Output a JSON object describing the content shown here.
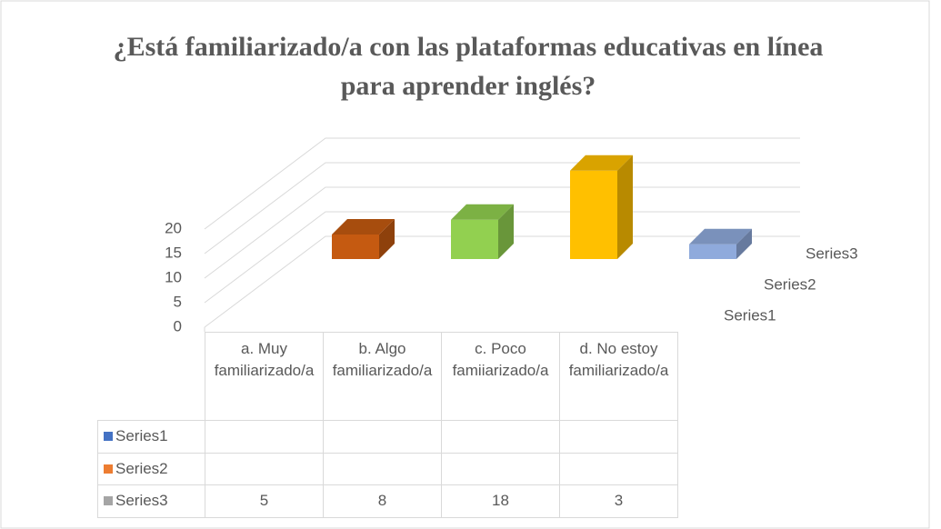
{
  "chart_data": {
    "type": "bar3d",
    "title": "¿Está familiarizado/a con las plataformas educativas en línea para aprender inglés?",
    "categories": [
      "a. Muy familiarizado/a",
      "b. Algo familiarizado/a",
      "c. Poco famiiarizado/a",
      "d. No estoy familiarizado/a"
    ],
    "series": [
      {
        "name": "Series1",
        "color": "#4472c4",
        "values": [
          null,
          null,
          null,
          null
        ]
      },
      {
        "name": "Series2",
        "color": "#ed7d31",
        "values": [
          null,
          null,
          null,
          null
        ]
      },
      {
        "name": "Series3",
        "color": "#a5a5a5",
        "values": [
          5,
          8,
          18,
          3
        ],
        "point_colors": [
          "#c55a11",
          "#92d050",
          "#ffc000",
          "#8faadc"
        ]
      }
    ],
    "ylim": [
      0,
      20
    ],
    "yticks": [
      0,
      5,
      10,
      15,
      20
    ],
    "grid": true,
    "data_table": true
  }
}
